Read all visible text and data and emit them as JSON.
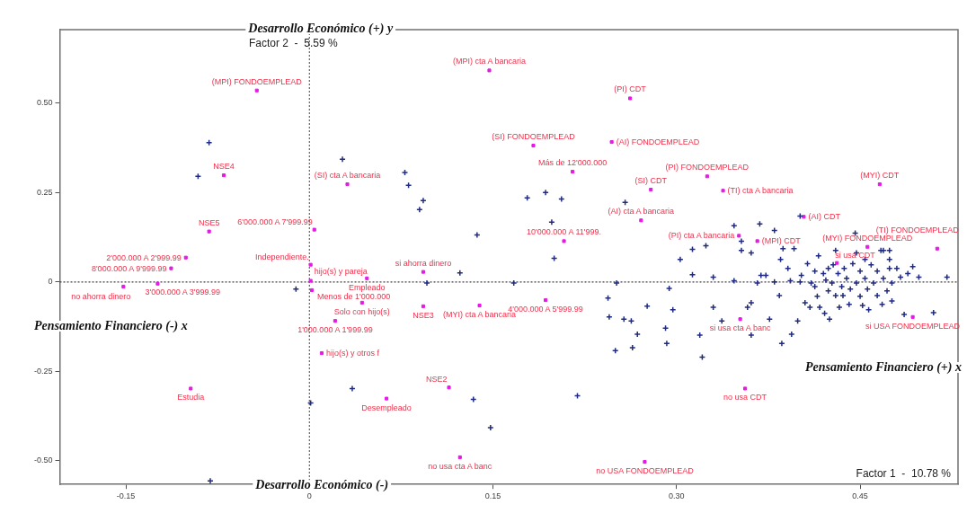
{
  "chart_data": {
    "type": "scatter",
    "xlabel": "Factor 1  -  10.78 %",
    "ylabel": "Factor 2  -  5.59 %",
    "annotations": [
      "Desarrollo Económico (+) y",
      "Desarrollo Económico (-)",
      "Pensamiento Financiero (-) x",
      "Pensamiento Financiero (+) x"
    ],
    "xlim": [
      -0.204,
      0.53
    ],
    "ylim": [
      -0.566,
      0.705
    ],
    "xticks": [
      {
        "value": -0.15,
        "label": "-0.15"
      },
      0,
      {
        "value": 0.15,
        "label": "0.15"
      },
      {
        "value": 0.3,
        "label": "0.30"
      },
      {
        "value": 0.45,
        "label": "0.45"
      }
    ],
    "yticks": [
      {
        "value": -0.5,
        "label": "-0.50"
      },
      {
        "value": -0.25,
        "label": "-0.25"
      },
      0,
      {
        "value": 0.25,
        "label": "0.25"
      },
      {
        "value": 0.5,
        "label": "0.50"
      }
    ],
    "grid": false,
    "legend": false,
    "ref_lines": [
      {
        "axis": "x",
        "value": 0,
        "color": "#606060",
        "line_style": "dotted"
      },
      {
        "axis": "y",
        "value": 0,
        "color": "#404040",
        "line_style": "dotted"
      }
    ],
    "series": [
      {
        "color": "#1f2a80",
        "marker": "cross",
        "x": [
          0.264,
          0.268,
          0.276,
          0.291,
          0.292,
          0.294,
          0.297,
          0.303,
          0.313,
          0.313,
          0.319,
          0.321,
          0.324,
          0.33,
          0.33,
          0.337,
          0.347,
          0.347,
          0.353,
          0.353,
          0.361,
          0.358,
          0.361,
          0.361,
          0.366,
          0.368,
          0.369,
          0.373,
          0.376,
          0.38,
          0.38,
          0.384,
          0.385,
          0.386,
          0.387,
          0.391,
          0.393,
          0.394,
          0.396,
          0.399,
          0.401,
          0.402,
          0.405,
          0.407,
          0.409,
          0.41,
          0.413,
          0.413,
          0.415,
          0.416,
          0.417,
          0.42,
          0.421,
          0.422,
          0.424,
          0.424,
          0.425,
          0.427,
          0.428,
          0.43,
          0.432,
          0.433,
          0.435,
          0.436,
          0.437,
          0.439,
          0.441,
          0.442,
          0.444,
          0.446,
          0.447,
          0.45,
          0.45,
          0.452,
          0.454,
          0.456,
          0.457,
          0.459,
          0.461,
          0.464,
          0.464,
          0.467,
          0.468,
          0.469,
          0.472,
          0.474,
          0.474,
          0.476,
          0.476,
          0.48,
          0.483,
          0.486,
          0.489,
          0.493,
          0.498,
          0.51,
          0.521,
          0.43,
          0.447,
          0.454,
          0.469,
          0.474,
          0.401,
          -0.082,
          -0.091,
          -0.081,
          -0.011,
          0.001,
          0.027,
          0.078,
          0.081,
          0.093,
          0.09,
          0.137,
          0.123,
          0.096,
          0.167,
          0.178,
          0.193,
          0.206,
          0.198,
          0.2,
          0.251,
          0.258,
          0.035,
          0.134,
          0.148,
          0.219,
          0.244,
          0.245,
          0.257,
          0.263,
          0.25
        ],
        "values": [
          -0.184,
          -0.146,
          -0.068,
          -0.129,
          -0.172,
          -0.018,
          -0.078,
          0.063,
          0.091,
          0.02,
          -0.149,
          -0.21,
          0.101,
          0.013,
          -0.071,
          -0.109,
          0.157,
          0.003,
          0.114,
          0.088,
          0.081,
          -0.071,
          -0.058,
          -0.149,
          -0.003,
          0.162,
          0.018,
          0.018,
          -0.104,
          0.144,
          0,
          -0.038,
          0.063,
          -0.172,
          0.093,
          0.038,
          0.003,
          -0.146,
          0.093,
          -0.109,
          0,
          0.018,
          -0.058,
          0.051,
          -0.071,
          -0.003,
          -0.013,
          0.03,
          -0.04,
          0.073,
          -0.071,
          0.023,
          -0.088,
          0.005,
          -0.025,
          0.038,
          -0.104,
          -0.003,
          0.048,
          -0.038,
          0.023,
          -0.071,
          -0.013,
          -0.038,
          0.038,
          0.01,
          -0.063,
          -0.02,
          0.051,
          0.136,
          -0.003,
          -0.04,
          0.03,
          -0.066,
          0.01,
          -0.02,
          -0.078,
          0.048,
          -0.003,
          0.03,
          -0.038,
          0.088,
          -0.063,
          0.01,
          -0.025,
          0.063,
          0.038,
          -0.003,
          -0.053,
          0.038,
          0.013,
          -0.091,
          0.023,
          0.043,
          0.013,
          -0.086,
          0.013,
          0.088,
          0.081,
          0.063,
          0.088,
          0.088,
          0.184,
          0.389,
          0.295,
          -0.556,
          -0.02,
          -0.338,
          0.343,
          0.306,
          0.27,
          0.227,
          0.202,
          0.131,
          0.025,
          -0.003,
          -0.003,
          0.235,
          0.25,
          0.232,
          0.167,
          0.066,
          -0.003,
          0.222,
          -0.298,
          -0.328,
          -0.407,
          -0.318,
          -0.045,
          -0.098,
          -0.104,
          -0.109,
          -0.192
        ]
      },
      {
        "color": "#e619e6",
        "marker": "square",
        "x": [
          -0.043,
          -0.07,
          -0.082,
          -0.101,
          -0.113,
          -0.152,
          -0.124,
          -0.097,
          0.004,
          0.001,
          0.001,
          0.002,
          0.047,
          0.093,
          0.043,
          0.093,
          0.139,
          0.021,
          0.01,
          0.114,
          0.063,
          0.123,
          0.193,
          0.147,
          0.031,
          0.183,
          0.247,
          0.262,
          0.215,
          0.208,
          0.279,
          0.325,
          0.338,
          0.271,
          0.404,
          0.466,
          0.351,
          0.366,
          0.456,
          0.513,
          0.431,
          0.352,
          0.493,
          0.356,
          0.274
        ],
        "values": [
          0.535,
          0.298,
          0.141,
          0.068,
          0.038,
          -0.013,
          -0.005,
          -0.298,
          0.146,
          0.048,
          0.003,
          -0.023,
          0.01,
          0.028,
          -0.058,
          -0.068,
          -0.066,
          -0.109,
          -0.199,
          -0.295,
          -0.326,
          -0.49,
          -0.051,
          0.591,
          0.273,
          0.381,
          0.391,
          0.513,
          0.308,
          0.114,
          0.258,
          0.295,
          0.255,
          0.172,
          0.182,
          0.273,
          0.129,
          0.114,
          0.098,
          0.093,
          0.053,
          -0.104,
          -0.098,
          -0.298,
          -0.503
        ],
        "value_labels": [
          "(MPI) FONDOEMPLEAD",
          "NSE4",
          "NSE5",
          "2'000.000 A 2'999.99",
          "8'000.000 A 9'999.99",
          "no ahorra dinero",
          "3'000.000 A 3'999.99",
          "Estudia",
          "6'000.000 A 7'999.99",
          "Independiente.",
          "hijo(s) y pareja",
          "Menos de 1'000.000",
          "Empleado",
          "si ahorra dinero",
          "Solo con hijo(s)",
          "NSE3",
          "(MYI) cta A bancaria",
          "1'000.000 A 1'999.99",
          "hijo(s) y otros f",
          "NSE2",
          "Desempleado",
          "no usa cta A banc",
          "4'000.000 A 5'999.99",
          "(MPI) cta A bancaria",
          "(SI) cta A bancaria",
          "(SI) FONDOEMPLEAD",
          "(AI) FONDOEMPLEAD",
          "(PI) CDT",
          "Más de 12'000.000",
          "10'000.000 A 11'999.",
          "(SI) CDT",
          "(PI) FONDOEMPLEAD",
          "(TI) cta A bancaria",
          "(AI) cta A bancaria",
          "(AI) CDT",
          "(MYI) CDT",
          "(PI) cta A bancaria",
          "(MPI) CDT",
          "(MYI) FONDOEMPLEAD",
          "(TI) FONDOEMPLEAD",
          "si usa CDT",
          "si usa cta A banc",
          "si USA FONDOEMPLEAD",
          "no usa CDT",
          "no USA FONDOEMPLEAD"
        ]
      }
    ]
  }
}
